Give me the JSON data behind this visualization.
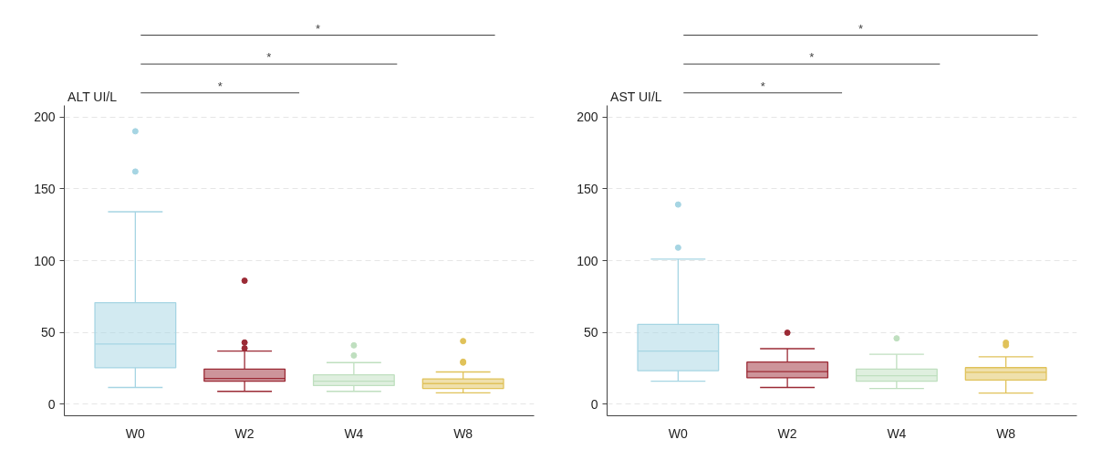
{
  "chart_data": [
    {
      "type": "box",
      "ylabel": "ALT UI/L",
      "categories": [
        "W0",
        "W2",
        "W4",
        "W8"
      ],
      "colors": [
        "#a6d5e3",
        "#9b2a35",
        "#bfdfbf",
        "#e0c25a"
      ],
      "boxes": [
        {
          "low": 11.7,
          "q1": 25.4,
          "median": 42,
          "q3": 70.7,
          "high": 134,
          "outliers": [
            190,
            162
          ]
        },
        {
          "low": 9,
          "q1": 16,
          "median": 18,
          "q3": 24.5,
          "high": 37,
          "outliers": [
            86,
            43,
            39
          ]
        },
        {
          "low": 9,
          "q1": 13,
          "median": 16,
          "q3": 20.5,
          "high": 29,
          "outliers": [
            41,
            34
          ]
        },
        {
          "low": 8,
          "q1": 11,
          "median": 14.4,
          "q3": 17.7,
          "high": 22.5,
          "outliers": [
            44,
            29.6,
            29
          ]
        }
      ],
      "ylim": [
        -8,
        208
      ],
      "yticks": [
        0,
        50,
        100,
        150,
        200
      ],
      "grid": "y",
      "annotations": [
        "*",
        "*",
        "*"
      ]
    },
    {
      "type": "box",
      "ylabel": "AST UI/L",
      "categories": [
        "W0",
        "W2",
        "W4",
        "W8"
      ],
      "colors": [
        "#a6d5e3",
        "#9b2a35",
        "#bfdfbf",
        "#e0c25a"
      ],
      "boxes": [
        {
          "low": 16,
          "q1": 23.4,
          "median": 37,
          "q3": 55.6,
          "high": 101,
          "outliers": [
            139,
            109
          ]
        },
        {
          "low": 11.7,
          "q1": 18.4,
          "median": 22.7,
          "q3": 29.4,
          "high": 38.7,
          "outliers": [
            49.8
          ]
        },
        {
          "low": 11,
          "q1": 16,
          "median": 19.9,
          "q3": 24.5,
          "high": 34.8,
          "outliers": [
            45.9
          ]
        },
        {
          "low": 7.8,
          "q1": 16.9,
          "median": 22.3,
          "q3": 25.5,
          "high": 33,
          "outliers": [
            42.9,
            41
          ]
        }
      ],
      "ylim": [
        -8,
        208
      ],
      "yticks": [
        0,
        50,
        100,
        150,
        200
      ],
      "grid": "y",
      "annotations": [
        "*",
        "*",
        "*"
      ]
    }
  ]
}
